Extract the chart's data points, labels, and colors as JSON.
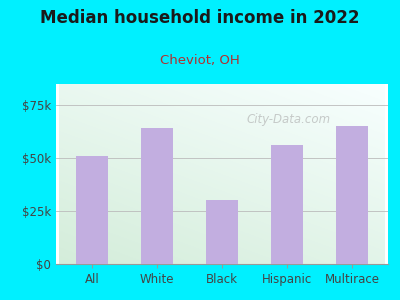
{
  "title": "Median household income in 2022",
  "subtitle": "Cheviot, OH",
  "categories": [
    "All",
    "White",
    "Black",
    "Hispanic",
    "Multirace"
  ],
  "values": [
    51000,
    64000,
    30000,
    56000,
    65000
  ],
  "bar_color": "#c2aee0",
  "background_outer": "#00f0ff",
  "background_inner_top_left": "#d4edda",
  "background_inner_bottom_right": "#f8ffff",
  "title_color": "#1a1a1a",
  "subtitle_color": "#b03030",
  "tick_color": "#444444",
  "yticks": [
    0,
    25000,
    50000,
    75000
  ],
  "ytick_labels": [
    "$0",
    "$25k",
    "$50k",
    "$75k"
  ],
  "ylim": [
    0,
    85000
  ],
  "watermark": "City-Data.com",
  "watermark_color": "#aaaaaa"
}
